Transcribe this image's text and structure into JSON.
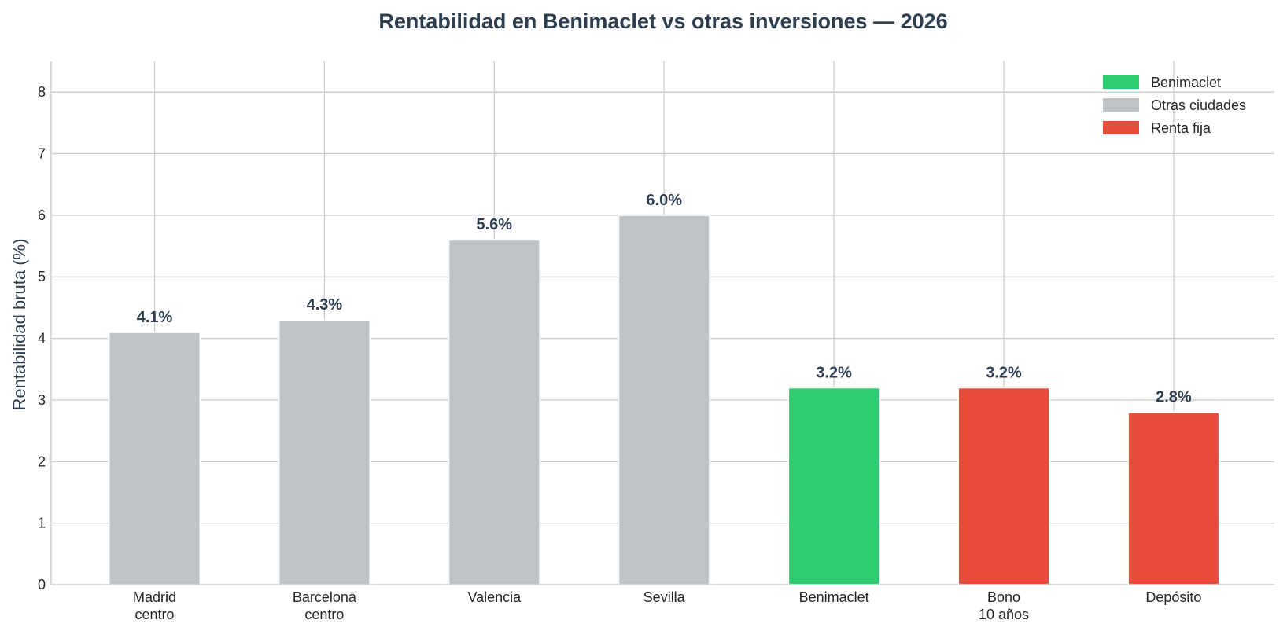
{
  "chart_data": {
    "type": "bar",
    "title": "Rentabilidad en Benimaclet vs otras inversiones — 2026",
    "xlabel": "",
    "ylabel": "Rentabilidad bruta (%)",
    "ylim": [
      0,
      8.5
    ],
    "yticks": [
      "0",
      "1",
      "2",
      "3",
      "4",
      "5",
      "6",
      "7",
      "8"
    ],
    "grid": true,
    "legend_position": "top-right",
    "categories": [
      [
        "Madrid",
        "centro"
      ],
      [
        "Barcelona",
        "centro"
      ],
      [
        "Valencia"
      ],
      [
        "Sevilla"
      ],
      [
        "Benimaclet"
      ],
      [
        "Bono",
        "10 años"
      ],
      [
        "Depósito"
      ]
    ],
    "values": [
      4.1,
      4.3,
      5.6,
      6.0,
      3.2,
      3.2,
      2.8
    ],
    "value_labels": [
      "4.1%",
      "4.3%",
      "5.6%",
      "6.0%",
      "3.2%",
      "3.2%",
      "2.8%"
    ],
    "groups": [
      "Otras ciudades",
      "Otras ciudades",
      "Otras ciudades",
      "Otras ciudades",
      "Benimaclet",
      "Renta fija",
      "Renta fija"
    ],
    "legend": [
      {
        "label": "Benimaclet",
        "color": "#2ecc71"
      },
      {
        "label": "Otras ciudades",
        "color": "#bdc3c7"
      },
      {
        "label": "Renta fija",
        "color": "#e74c3c"
      }
    ]
  }
}
